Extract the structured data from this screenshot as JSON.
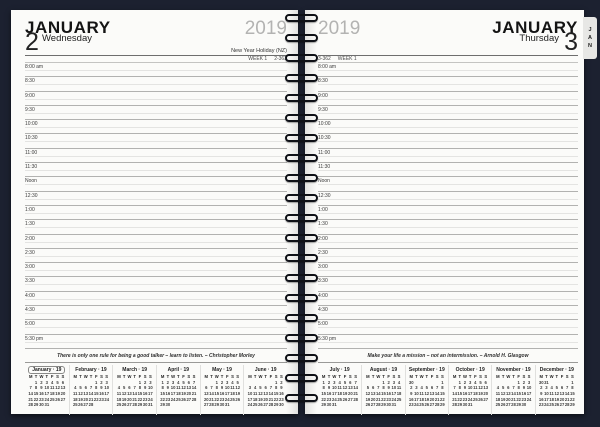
{
  "colors": {
    "background": "#1c2130",
    "page": "#fbfbf9",
    "spiral_wire": "#0e1016",
    "tab_background": "#e7e7e5",
    "year_gray": "#b3b3b2",
    "rule_strong": "#6e6e6e",
    "rule_slot": "#b2b2b0",
    "rule_half": "#e4e4e2"
  },
  "weekday_header": [
    "M",
    "T",
    "W",
    "T",
    "F",
    "S",
    "S"
  ],
  "time_slots": [
    "8:00 am",
    "8:30",
    "9:00",
    "9:30",
    "10:00",
    "10:30",
    "11:00",
    "11:30",
    "Noon",
    "12:30",
    "1:00",
    "1:30",
    "2:00",
    "2:30",
    "3:00",
    "3:30",
    "4:00",
    "4:30",
    "5:00",
    "5:30 pm"
  ],
  "spiral": {
    "coil_count": 20
  },
  "left_page": {
    "month": "JANUARY",
    "year": "2019",
    "day_number": "2",
    "day_name": "Wednesday",
    "holiday": "New Year Holiday (NZ)",
    "week_label": "WEEK 1",
    "day_of_year": "2-363",
    "quote": "There is only one rule for being a good talker – learn to listen. – Christopher Morley",
    "mini_calendars": [
      {
        "title": "January · 19",
        "current": true,
        "weeks": [
          [
            "",
            1,
            2,
            3,
            4,
            5,
            6
          ],
          [
            7,
            8,
            9,
            10,
            11,
            12,
            13
          ],
          [
            14,
            15,
            16,
            17,
            18,
            19,
            20
          ],
          [
            21,
            22,
            23,
            24,
            25,
            26,
            27
          ],
          [
            28,
            29,
            30,
            31,
            "",
            "",
            ""
          ]
        ]
      },
      {
        "title": "February · 19",
        "current": false,
        "weeks": [
          [
            "",
            "",
            "",
            "",
            1,
            2,
            3
          ],
          [
            4,
            5,
            6,
            7,
            8,
            9,
            10
          ],
          [
            11,
            12,
            13,
            14,
            15,
            16,
            17
          ],
          [
            18,
            19,
            20,
            21,
            22,
            23,
            24
          ],
          [
            25,
            26,
            27,
            28,
            "",
            "",
            ""
          ]
        ]
      },
      {
        "title": "March · 19",
        "current": false,
        "weeks": [
          [
            "",
            "",
            "",
            "",
            1,
            2,
            3
          ],
          [
            4,
            5,
            6,
            7,
            8,
            9,
            10
          ],
          [
            11,
            12,
            13,
            14,
            15,
            16,
            17
          ],
          [
            18,
            19,
            20,
            21,
            22,
            23,
            24
          ],
          [
            25,
            26,
            27,
            28,
            29,
            30,
            31
          ]
        ]
      },
      {
        "title": "April · 19",
        "current": false,
        "weeks": [
          [
            1,
            2,
            3,
            4,
            5,
            6,
            7
          ],
          [
            8,
            9,
            10,
            11,
            12,
            13,
            14
          ],
          [
            15,
            16,
            17,
            18,
            19,
            20,
            21
          ],
          [
            22,
            23,
            24,
            25,
            26,
            27,
            28
          ],
          [
            29,
            30,
            "",
            "",
            "",
            "",
            ""
          ]
        ]
      },
      {
        "title": "May · 19",
        "current": false,
        "weeks": [
          [
            "",
            "",
            1,
            2,
            3,
            4,
            5
          ],
          [
            6,
            7,
            8,
            9,
            10,
            11,
            12
          ],
          [
            13,
            14,
            15,
            16,
            17,
            18,
            19
          ],
          [
            20,
            21,
            22,
            23,
            24,
            25,
            26
          ],
          [
            27,
            28,
            29,
            30,
            31,
            "",
            ""
          ]
        ]
      },
      {
        "title": "June · 19",
        "current": false,
        "weeks": [
          [
            "",
            "",
            "",
            "",
            "",
            1,
            2
          ],
          [
            3,
            4,
            5,
            6,
            7,
            8,
            9
          ],
          [
            10,
            11,
            12,
            13,
            14,
            15,
            16
          ],
          [
            17,
            18,
            19,
            20,
            21,
            22,
            23
          ],
          [
            24,
            25,
            26,
            27,
            28,
            29,
            30
          ]
        ]
      }
    ]
  },
  "right_page": {
    "month": "JANUARY",
    "year": "2019",
    "day_number": "3",
    "day_name": "Thursday",
    "week_label": "WEEK 1",
    "day_of_year": "3-362",
    "quote": "Make your life a mission – not an intermission. – Arnold H. Glasgow",
    "tab_letters": [
      "J",
      "A",
      "N"
    ],
    "mini_calendars": [
      {
        "title": "July · 19",
        "current": false,
        "weeks": [
          [
            1,
            2,
            3,
            4,
            5,
            6,
            7
          ],
          [
            8,
            9,
            10,
            11,
            12,
            13,
            14
          ],
          [
            15,
            16,
            17,
            18,
            19,
            20,
            21
          ],
          [
            22,
            23,
            24,
            25,
            26,
            27,
            28
          ],
          [
            29,
            30,
            31,
            "",
            "",
            "",
            ""
          ]
        ]
      },
      {
        "title": "August · 19",
        "current": false,
        "weeks": [
          [
            "",
            "",
            "",
            1,
            2,
            3,
            4
          ],
          [
            5,
            6,
            7,
            8,
            9,
            10,
            11
          ],
          [
            12,
            13,
            14,
            15,
            16,
            17,
            18
          ],
          [
            19,
            20,
            21,
            22,
            23,
            24,
            25
          ],
          [
            26,
            27,
            28,
            29,
            30,
            31,
            ""
          ]
        ]
      },
      {
        "title": "September · 19",
        "current": false,
        "weeks": [
          [
            30,
            "",
            "",
            "",
            "",
            "",
            1
          ],
          [
            2,
            3,
            4,
            5,
            6,
            7,
            8
          ],
          [
            9,
            10,
            11,
            12,
            13,
            14,
            15
          ],
          [
            16,
            17,
            18,
            19,
            20,
            21,
            22
          ],
          [
            23,
            24,
            25,
            26,
            27,
            28,
            29
          ]
        ]
      },
      {
        "title": "October · 19",
        "current": false,
        "weeks": [
          [
            "",
            1,
            2,
            3,
            4,
            5,
            6
          ],
          [
            7,
            8,
            9,
            10,
            11,
            12,
            13
          ],
          [
            14,
            15,
            16,
            17,
            18,
            19,
            20
          ],
          [
            21,
            22,
            23,
            24,
            25,
            26,
            27
          ],
          [
            28,
            29,
            30,
            31,
            "",
            "",
            ""
          ]
        ]
      },
      {
        "title": "November · 19",
        "current": false,
        "weeks": [
          [
            "",
            "",
            "",
            "",
            1,
            2,
            3
          ],
          [
            4,
            5,
            6,
            7,
            8,
            9,
            10
          ],
          [
            11,
            12,
            13,
            14,
            15,
            16,
            17
          ],
          [
            18,
            19,
            20,
            21,
            22,
            23,
            24
          ],
          [
            25,
            26,
            27,
            28,
            29,
            30,
            ""
          ]
        ]
      },
      {
        "title": "December · 19",
        "current": false,
        "weeks": [
          [
            30,
            31,
            "",
            "",
            "",
            "",
            1
          ],
          [
            2,
            3,
            4,
            5,
            6,
            7,
            8
          ],
          [
            9,
            10,
            11,
            12,
            13,
            14,
            15
          ],
          [
            16,
            17,
            18,
            19,
            20,
            21,
            22
          ],
          [
            23,
            24,
            25,
            26,
            27,
            28,
            29
          ]
        ]
      }
    ]
  }
}
